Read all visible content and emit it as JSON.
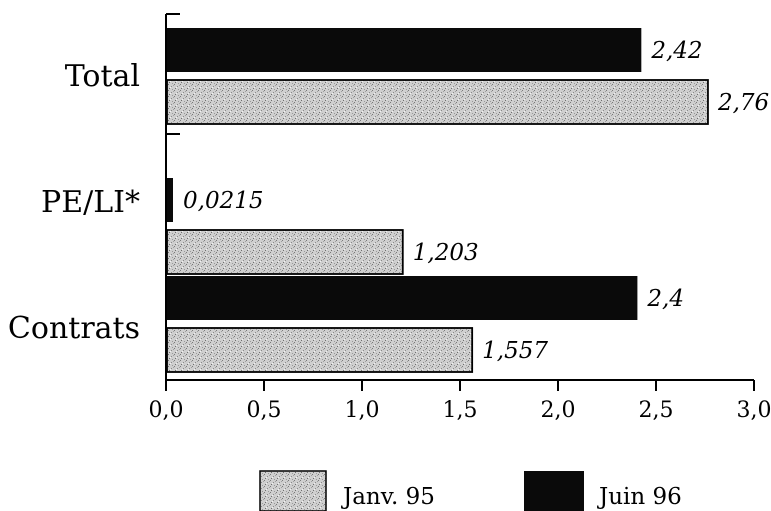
{
  "chart_data": {
    "type": "bar",
    "orientation": "horizontal",
    "categories": [
      "Total",
      "PE/LI*",
      "Contrats"
    ],
    "series": [
      {
        "name": "Juin 96",
        "values": [
          2.42,
          0.0215,
          2.4
        ],
        "labels": [
          "2,42",
          "0,0215",
          "2,4"
        ],
        "color": "#0a0a0a"
      },
      {
        "name": "Janv. 95",
        "values": [
          2.76,
          1.203,
          1.557
        ],
        "labels": [
          "2,76",
          "1,203",
          "1,557"
        ],
        "color": "#c9c9c9"
      }
    ],
    "xlim": [
      0,
      3.0
    ],
    "xticks": [
      0,
      0.5,
      1.0,
      1.5,
      2.0,
      2.5,
      3.0
    ],
    "xtick_labels": [
      "0,0",
      "0,5",
      "1,0",
      "1,5",
      "2,0",
      "2,5",
      "3,0"
    ],
    "title": "",
    "xlabel": "",
    "ylabel": "",
    "grid": false,
    "legend": {
      "placement": "bottom",
      "order": [
        "Janv. 95",
        "Juin 96"
      ]
    }
  }
}
